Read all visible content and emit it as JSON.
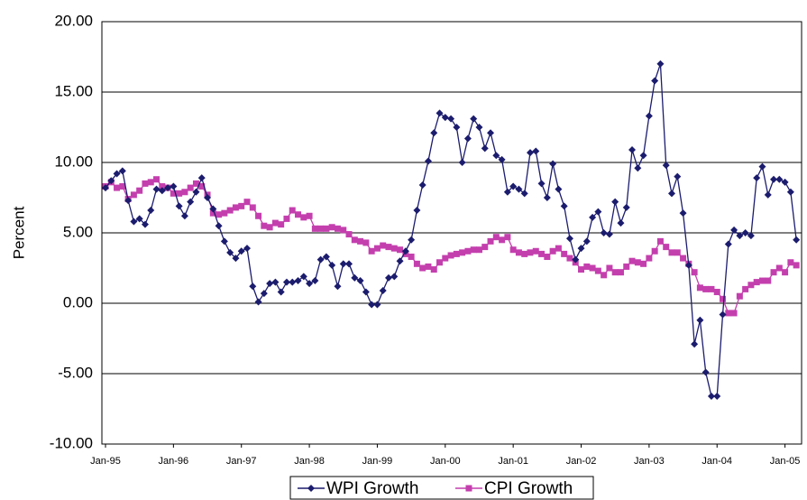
{
  "chart_data": {
    "type": "line",
    "y_label": "Percent",
    "categories": [
      "Jan-95",
      null,
      null,
      null,
      null,
      null,
      null,
      null,
      null,
      null,
      null,
      null,
      "Jan-96",
      null,
      null,
      null,
      null,
      null,
      null,
      null,
      null,
      null,
      null,
      null,
      "Jan-97",
      null,
      null,
      null,
      null,
      null,
      null,
      null,
      null,
      null,
      null,
      null,
      "Jan-98",
      null,
      null,
      null,
      null,
      null,
      null,
      null,
      null,
      null,
      null,
      null,
      "Jan-99",
      null,
      null,
      null,
      null,
      null,
      null,
      null,
      null,
      null,
      null,
      null,
      "Jan-00",
      null,
      null,
      null,
      null,
      null,
      null,
      null,
      null,
      null,
      null,
      null,
      "Jan-01",
      null,
      null,
      null,
      null,
      null,
      null,
      null,
      null,
      null,
      null,
      null,
      "Jan-02",
      null,
      null,
      null,
      null,
      null,
      null,
      null,
      null,
      null,
      null,
      null,
      "Jan-03",
      null,
      null,
      null,
      null,
      null,
      null,
      null,
      null,
      null,
      null,
      null,
      "Jan-04",
      null,
      null,
      null,
      null,
      null,
      null,
      null,
      null,
      null,
      null,
      null,
      "Jan-05",
      null,
      null
    ],
    "series": [
      {
        "name": "WPI Growth",
        "color": "#1c1c6e",
        "marker": "diamond",
        "values": [
          8.2,
          8.7,
          9.2,
          9.4,
          7.3,
          5.8,
          6.0,
          5.6,
          6.6,
          8.1,
          8.0,
          8.2,
          8.3,
          6.9,
          6.2,
          7.2,
          7.9,
          8.9,
          7.5,
          6.7,
          5.5,
          4.4,
          3.6,
          3.2,
          3.7,
          3.9,
          1.2,
          0.1,
          0.7,
          1.4,
          1.5,
          0.8,
          1.5,
          1.5,
          1.6,
          1.9,
          1.4,
          1.6,
          3.1,
          3.3,
          2.7,
          1.2,
          2.8,
          2.8,
          1.8,
          1.6,
          0.8,
          -0.1,
          -0.1,
          0.9,
          1.8,
          1.9,
          3.0,
          3.7,
          4.5,
          6.6,
          8.4,
          10.1,
          12.1,
          13.5,
          13.2,
          13.1,
          12.5,
          10.0,
          11.7,
          13.1,
          12.5,
          11.0,
          12.1,
          10.5,
          10.2,
          7.9,
          8.3,
          8.1,
          7.8,
          10.7,
          10.8,
          8.5,
          7.5,
          9.9,
          8.1,
          6.9,
          4.6,
          3.1,
          3.9,
          4.4,
          6.1,
          6.5,
          5.0,
          4.9,
          7.2,
          5.7,
          6.8,
          10.9,
          9.6,
          10.5,
          13.3,
          15.8,
          17.0,
          9.8,
          7.8,
          9.0,
          6.4,
          2.7,
          -2.9,
          -1.2,
          -4.9,
          -6.6,
          -6.6,
          -0.8,
          4.2,
          5.2,
          4.8,
          5.0,
          4.8,
          8.9,
          9.7,
          7.7,
          8.8,
          8.8,
          8.6,
          7.9,
          4.5
        ]
      },
      {
        "name": "CPI Growth",
        "color": "#c43fae",
        "marker": "square",
        "values": [
          8.3,
          8.6,
          8.2,
          8.3,
          7.4,
          7.7,
          8.0,
          8.5,
          8.6,
          8.8,
          8.3,
          8.2,
          7.8,
          7.8,
          7.9,
          8.2,
          8.5,
          8.3,
          7.7,
          6.4,
          6.3,
          6.4,
          6.6,
          6.8,
          6.9,
          7.2,
          6.8,
          6.2,
          5.5,
          5.4,
          5.7,
          5.6,
          6.0,
          6.6,
          6.3,
          6.1,
          6.2,
          5.3,
          5.3,
          5.3,
          5.4,
          5.3,
          5.2,
          4.9,
          4.5,
          4.4,
          4.3,
          3.7,
          3.9,
          4.1,
          4.0,
          3.9,
          3.8,
          3.5,
          3.3,
          2.8,
          2.5,
          2.6,
          2.4,
          2.9,
          3.2,
          3.4,
          3.5,
          3.6,
          3.7,
          3.8,
          3.8,
          4.0,
          4.4,
          4.7,
          4.5,
          4.7,
          3.8,
          3.6,
          3.5,
          3.6,
          3.7,
          3.5,
          3.3,
          3.7,
          3.9,
          3.5,
          3.2,
          2.9,
          2.4,
          2.6,
          2.5,
          2.3,
          2.0,
          2.5,
          2.2,
          2.2,
          2.6,
          3.0,
          2.9,
          2.8,
          3.2,
          3.7,
          4.4,
          4.0,
          3.6,
          3.6,
          3.2,
          2.8,
          2.2,
          1.1,
          1.0,
          1.0,
          0.8,
          0.3,
          -0.7,
          -0.7,
          0.5,
          1.0,
          1.3,
          1.5,
          1.6,
          1.6,
          2.2,
          2.5,
          2.2,
          2.9,
          2.7
        ]
      }
    ],
    "ylim": [
      -10,
      20
    ],
    "yticks": [
      {
        "value": -10,
        "label": "-10.00"
      },
      {
        "value": -5,
        "label": "-5.00"
      },
      {
        "value": 0,
        "label": "0.00"
      },
      {
        "value": 5,
        "label": "5.00"
      },
      {
        "value": 10,
        "label": "10.00"
      },
      {
        "value": 15,
        "label": "15.00"
      },
      {
        "value": 20,
        "label": "20.00"
      }
    ],
    "grid": true,
    "legend": "bottom"
  }
}
